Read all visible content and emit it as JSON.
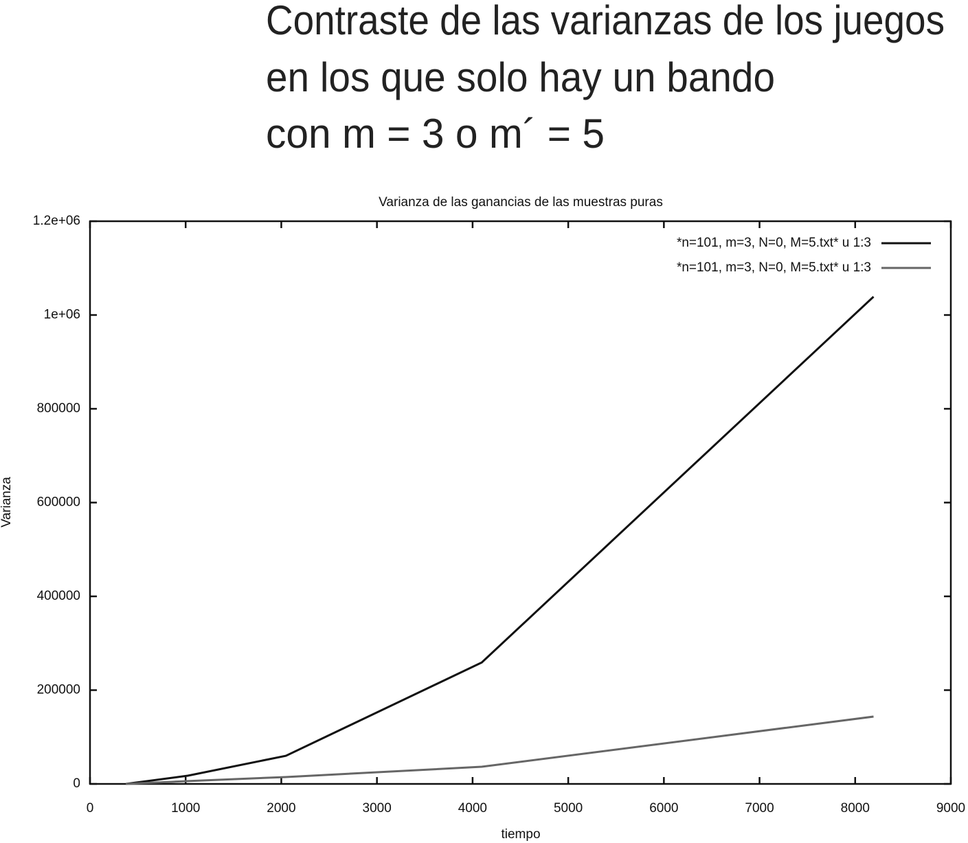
{
  "heading": [
    "Contraste de las varianzas de los juegos",
    "en los que solo hay un bando",
    "con m = 3 o m´ = 5"
  ],
  "chart_data": {
    "type": "line",
    "title": "Varianza de las ganancias de las muestras puras",
    "x_label": "tiempo",
    "y_label": "Varianza",
    "series": [
      {
        "name": "*n=101, m=3, N=0, M=5.txt* u 1:3",
        "color": "#111111",
        "x": [
          375,
          1024,
          2048,
          4096,
          8192
        ],
        "values": [
          0,
          17600,
          60000,
          259000,
          1039000
        ]
      },
      {
        "name": "*n=101, m=3, N=0, M=5.txt* u 1:3",
        "color": "#666666",
        "x": [
          375,
          1024,
          2048,
          4096,
          8192
        ],
        "values": [
          0,
          6000,
          14700,
          36600,
          143600
        ]
      }
    ],
    "xlim": [
      0,
      9000
    ],
    "xticks": [
      0,
      1000,
      2000,
      3000,
      4000,
      5000,
      6000,
      7000,
      8000,
      9000
    ],
    "ylim": [
      0,
      1200000
    ],
    "yticks": [
      0,
      200000,
      400000,
      600000,
      800000,
      {
        "value": 1000000,
        "label": "1e+06"
      },
      {
        "value": 1200000,
        "label": "1.2e+06"
      }
    ],
    "legend": "top-right",
    "grid": false
  }
}
